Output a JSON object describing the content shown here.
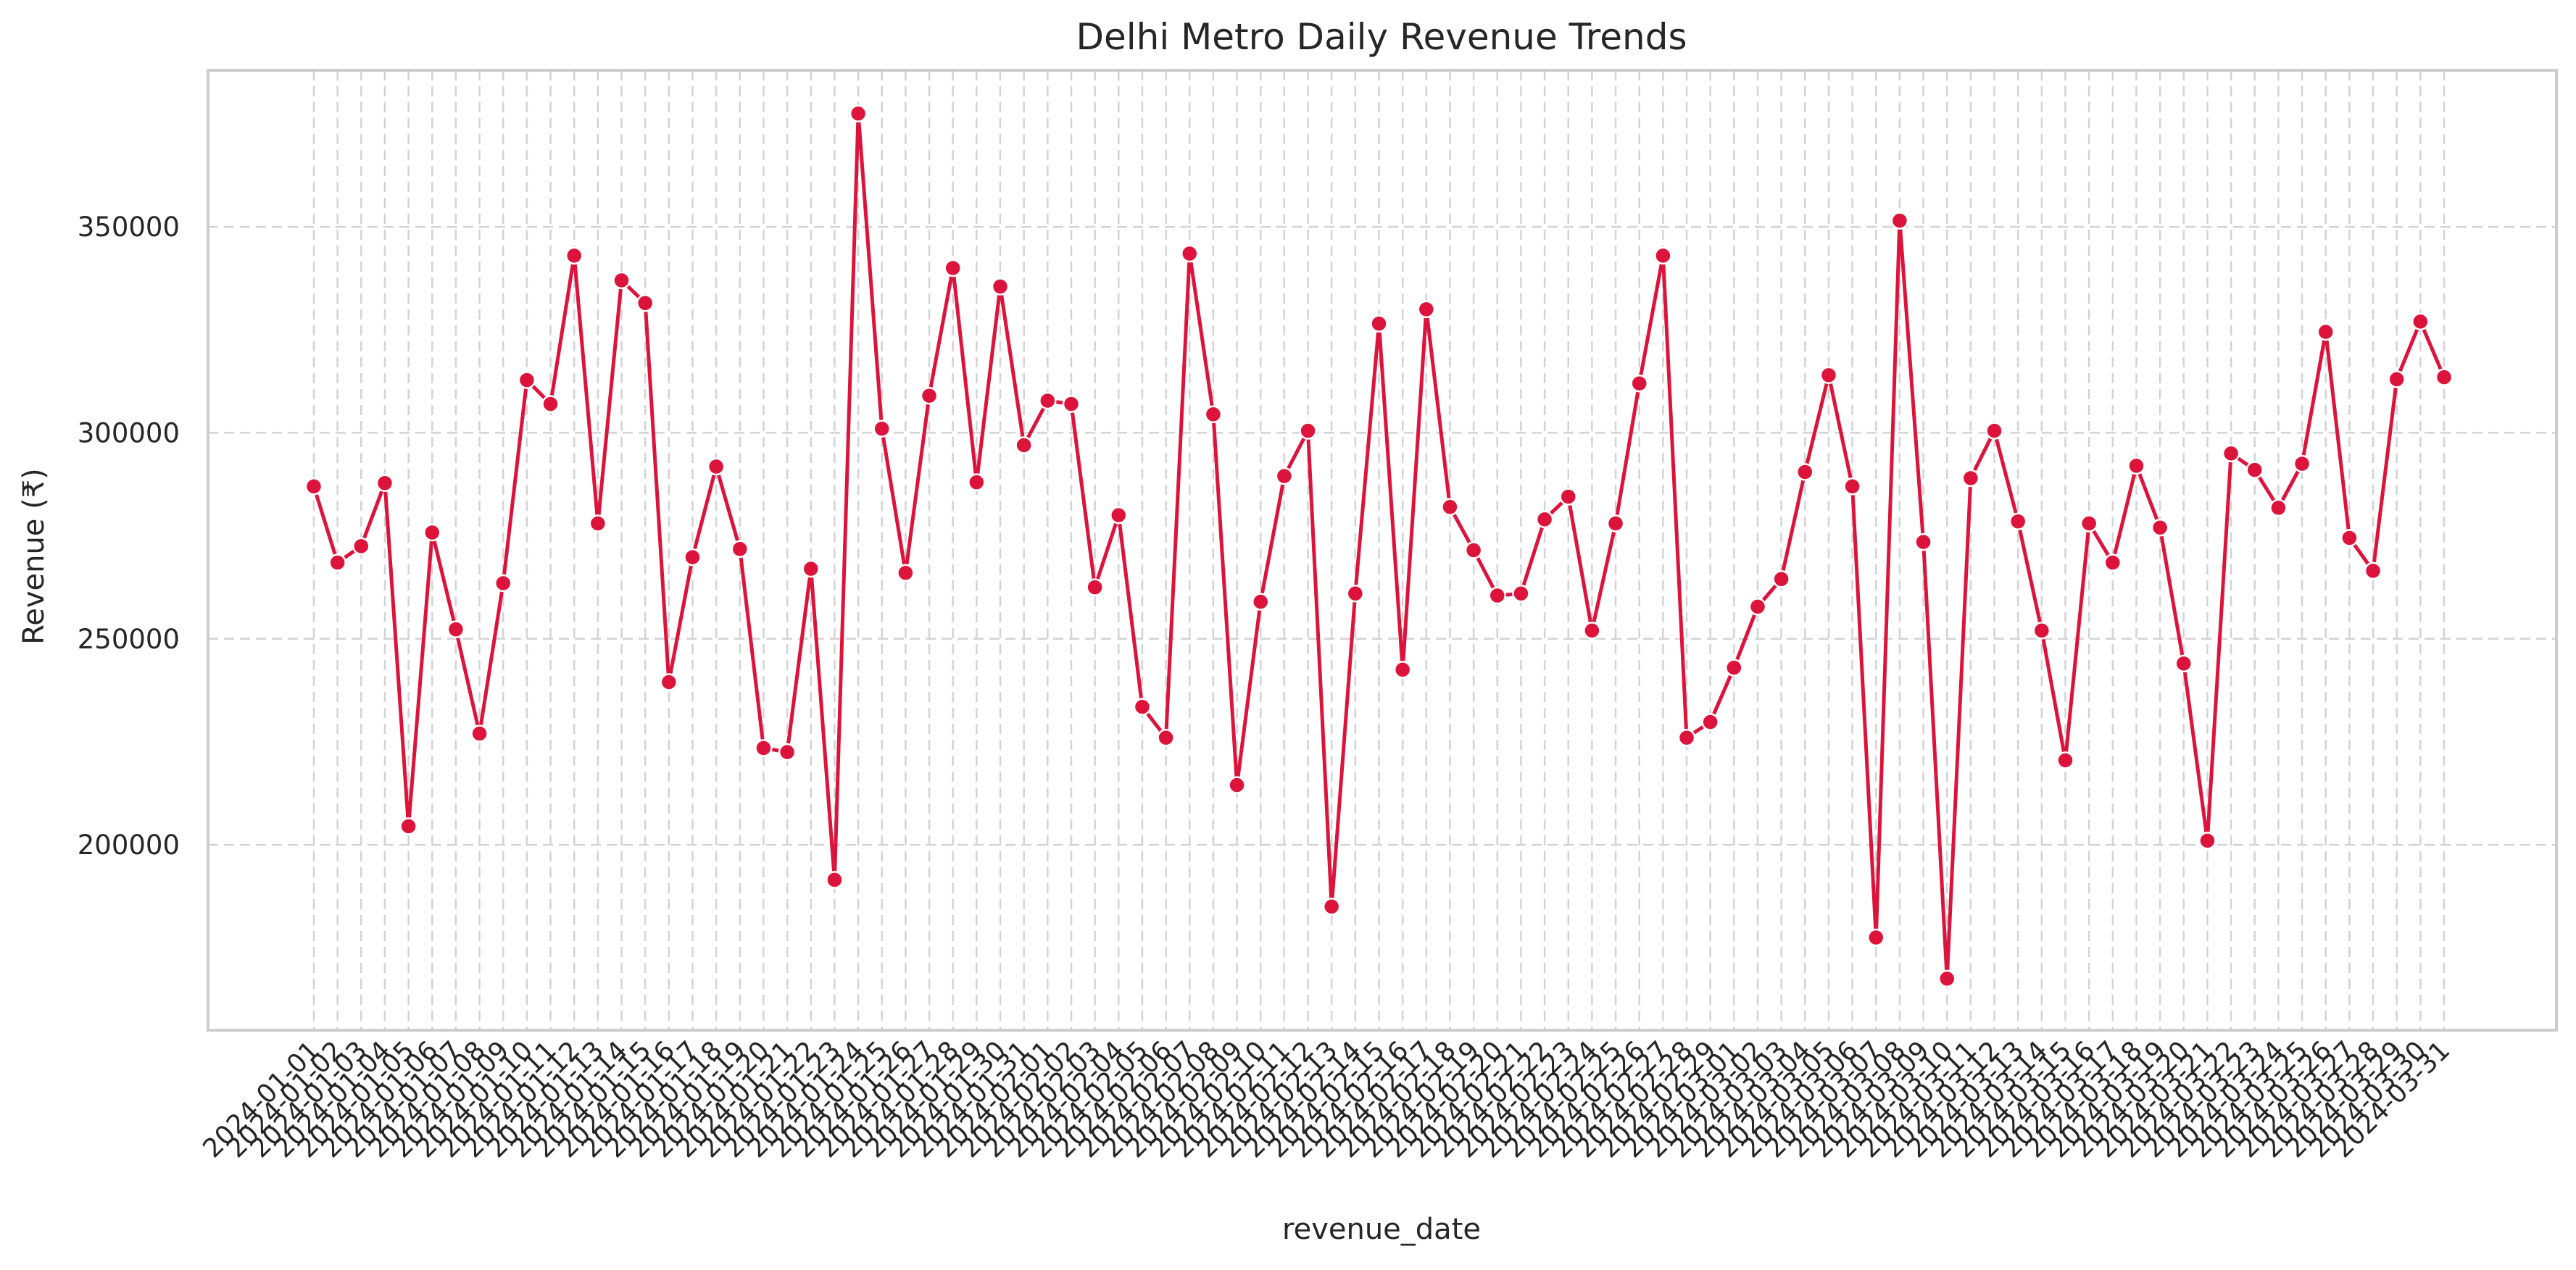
{
  "chart_data": {
    "type": "line",
    "title": "Delhi Metro Daily Revenue Trends",
    "xlabel": "revenue_date",
    "ylabel": "Revenue (₹)",
    "ylim": [
      155000,
      388000
    ],
    "yticks": [
      200000,
      250000,
      300000,
      350000
    ],
    "grid": true,
    "line_color": "#dc143c",
    "x": [
      "2024-01-01",
      "2024-01-02",
      "2024-01-03",
      "2024-01-04",
      "2024-01-05",
      "2024-01-06",
      "2024-01-07",
      "2024-01-08",
      "2024-01-09",
      "2024-01-10",
      "2024-01-11",
      "2024-01-12",
      "2024-01-13",
      "2024-01-14",
      "2024-01-15",
      "2024-01-16",
      "2024-01-17",
      "2024-01-18",
      "2024-01-19",
      "2024-01-20",
      "2024-01-21",
      "2024-01-22",
      "2024-01-23",
      "2024-01-24",
      "2024-01-25",
      "2024-01-26",
      "2024-01-27",
      "2024-01-28",
      "2024-01-29",
      "2024-01-30",
      "2024-01-31",
      "2024-02-01",
      "2024-02-02",
      "2024-02-03",
      "2024-02-04",
      "2024-02-05",
      "2024-02-06",
      "2024-02-07",
      "2024-02-08",
      "2024-02-09",
      "2024-02-10",
      "2024-02-11",
      "2024-02-12",
      "2024-02-13",
      "2024-02-14",
      "2024-02-15",
      "2024-02-16",
      "2024-02-17",
      "2024-02-18",
      "2024-02-19",
      "2024-02-20",
      "2024-02-21",
      "2024-02-22",
      "2024-02-23",
      "2024-02-24",
      "2024-02-25",
      "2024-02-26",
      "2024-02-27",
      "2024-02-28",
      "2024-02-29",
      "2024-03-01",
      "2024-03-02",
      "2024-03-03",
      "2024-03-04",
      "2024-03-05",
      "2024-03-06",
      "2024-03-07",
      "2024-03-08",
      "2024-03-09",
      "2024-03-10",
      "2024-03-11",
      "2024-03-12",
      "2024-03-13",
      "2024-03-14",
      "2024-03-15",
      "2024-03-16",
      "2024-03-17",
      "2024-03-18",
      "2024-03-19",
      "2024-03-20",
      "2024-03-21",
      "2024-03-22",
      "2024-03-23",
      "2024-03-24",
      "2024-03-25",
      "2024-03-26",
      "2024-03-27",
      "2024-03-28",
      "2024-03-29",
      "2024-03-30",
      "2024-03-31"
    ],
    "series": [
      {
        "values": [
          287000,
          268500,
          272500,
          287800,
          204500,
          275800,
          252300,
          227000,
          263500,
          312800,
          307000,
          343000,
          278000,
          337000,
          331500,
          239500,
          269800,
          291800,
          271800,
          223500,
          222500,
          267000,
          191500,
          377500,
          301000,
          266000,
          309000,
          340000,
          288000,
          335500,
          297000,
          307800,
          307000,
          262500,
          280000,
          233500,
          226000,
          343500,
          304500,
          214500,
          259000,
          289500,
          300500,
          185000,
          261000,
          326500,
          242500,
          330000,
          282000,
          271500,
          260500,
          261000,
          279000,
          284500,
          252000,
          278000,
          312000,
          343000,
          226000,
          229800,
          243000,
          257800,
          264500,
          290500,
          314000,
          287000,
          177500,
          351500,
          273500,
          167500,
          289000,
          300500,
          278500,
          252000,
          220500,
          278000,
          268500,
          292000,
          277000,
          244000,
          201000,
          295000,
          291000,
          281800,
          292500,
          324500,
          274500,
          266500,
          313000,
          327000,
          313500
        ]
      }
    ]
  }
}
